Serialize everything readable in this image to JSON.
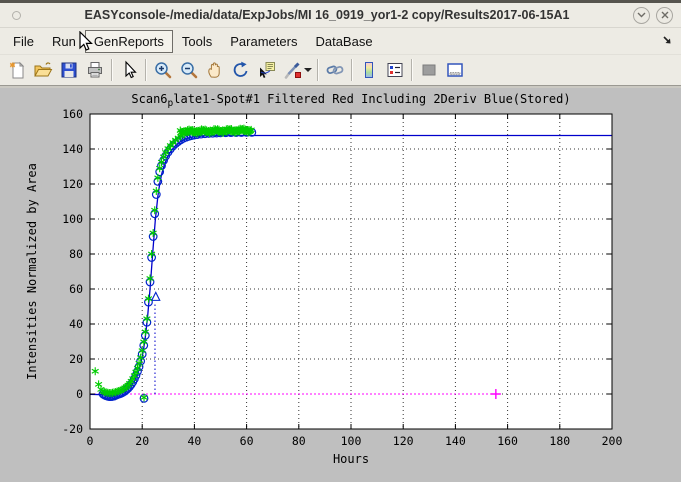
{
  "window": {
    "title": "EASYconsole-/media/data/ExpJobs/MI 16_0919_yor1-2 copy/Results2017-06-15A1"
  },
  "menu": {
    "items": [
      {
        "id": "file",
        "label": "File"
      },
      {
        "id": "run",
        "label": "Run"
      },
      {
        "id": "genreports",
        "label": "GenReports",
        "highlighted": true
      },
      {
        "id": "tools",
        "label": "Tools"
      },
      {
        "id": "parameters",
        "label": "Parameters"
      },
      {
        "id": "database",
        "label": "DataBase"
      }
    ]
  },
  "toolbar": {
    "icons": [
      "new-document",
      "open-file",
      "save",
      "print",
      "pointer",
      "zoom-in",
      "zoom-out",
      "pan-hand",
      "rotate-3d",
      "data-cursor",
      "brush",
      "link-plots",
      "insert-colorbar",
      "insert-legend",
      "hide-plot-tools",
      "show-plot-tools"
    ]
  },
  "chart_data": {
    "type": "line",
    "title_parts": {
      "pre": "Scan6",
      "sub": "p",
      "post": "late1-Spot#1 Filtered Red Including 2Deriv Blue(Stored)"
    },
    "xlabel": "Hours",
    "ylabel": "Intensities Normalized by Area",
    "xlim": [
      0,
      200
    ],
    "ylim": [
      -20,
      160
    ],
    "xticks": [
      0,
      20,
      40,
      60,
      80,
      100,
      120,
      140,
      160,
      180,
      200
    ],
    "yticks": [
      -20,
      0,
      20,
      40,
      60,
      80,
      100,
      120,
      140,
      160
    ],
    "grid": true,
    "legend": "none",
    "colors": {
      "fit_line": "#0000cc",
      "circle_markers": "#0022cc",
      "star_markers": "#00cc00",
      "baseline": "#ff00ff",
      "axis": "#000000",
      "plot_bg": "#ffffff",
      "figure_bg": "#bfbfbf"
    },
    "series": [
      {
        "name": "fit-line",
        "marker": "none",
        "points": [
          [
            0,
            -0.2
          ],
          [
            5,
            -0.4
          ],
          [
            7,
            -0.6
          ],
          [
            9,
            -0.4
          ],
          [
            11,
            0.2
          ],
          [
            13,
            1.4
          ],
          [
            15,
            3.5
          ],
          [
            16,
            5
          ],
          [
            17,
            7.2
          ],
          [
            18,
            10.5
          ],
          [
            19,
            15
          ],
          [
            20,
            21
          ],
          [
            21,
            30
          ],
          [
            22,
            43
          ],
          [
            23,
            60
          ],
          [
            24,
            80
          ],
          [
            25,
            99
          ],
          [
            26,
            113
          ],
          [
            26.8,
            121
          ],
          [
            27.6,
            126.5
          ],
          [
            28.5,
            131
          ],
          [
            29.5,
            134.8
          ],
          [
            30.5,
            137.6
          ],
          [
            31.5,
            139.8
          ],
          [
            32.5,
            141.5
          ],
          [
            33.5,
            142.9
          ],
          [
            34.5,
            144
          ],
          [
            35.5,
            144.9
          ],
          [
            36.5,
            145.6
          ],
          [
            37.5,
            146.2
          ],
          [
            38.5,
            146.6
          ],
          [
            40,
            147.1
          ],
          [
            42,
            147.4
          ],
          [
            44,
            147.6
          ],
          [
            47,
            147.7
          ],
          [
            200,
            147.7
          ]
        ]
      },
      {
        "name": "filtered-red-circles",
        "marker": "circle",
        "points": [
          [
            5,
            0
          ],
          [
            5.6,
            -0.6
          ],
          [
            6.2,
            -1
          ],
          [
            6.8,
            -1.3
          ],
          [
            7.4,
            -1.5
          ],
          [
            8,
            -1.5
          ],
          [
            8.6,
            -1.4
          ],
          [
            9.2,
            -1.2
          ],
          [
            9.8,
            -0.8
          ],
          [
            10.4,
            -0.4
          ],
          [
            11,
            -0.1
          ],
          [
            11.6,
            0.2
          ],
          [
            12.2,
            0.6
          ],
          [
            12.8,
            1.1
          ],
          [
            13.4,
            1.7
          ],
          [
            14,
            2.5
          ],
          [
            14.6,
            3.3
          ],
          [
            15.2,
            4.3
          ],
          [
            15.8,
            5.5
          ],
          [
            16.4,
            6.9
          ],
          [
            17,
            8.6
          ],
          [
            17.6,
            10.6
          ],
          [
            18.2,
            12.9
          ],
          [
            18.8,
            15.6
          ],
          [
            19.4,
            18.8
          ],
          [
            20,
            22.8
          ],
          [
            20.6,
            27.8
          ],
          [
            21.2,
            33.5
          ],
          [
            21.8,
            41
          ],
          [
            22.4,
            52.5
          ],
          [
            23,
            64
          ],
          [
            23.6,
            78
          ],
          [
            24.2,
            90
          ],
          [
            24.8,
            103
          ],
          [
            25.4,
            114
          ],
          [
            26,
            121.5
          ],
          [
            26.7,
            127
          ],
          [
            27.4,
            130.5
          ],
          [
            28.2,
            133.5
          ],
          [
            29,
            136
          ],
          [
            29.9,
            138.2
          ],
          [
            30.8,
            140
          ],
          [
            31.8,
            141.7
          ],
          [
            32.8,
            143.1
          ],
          [
            33.8,
            144.3
          ],
          [
            34.8,
            145.3
          ],
          [
            35.8,
            146.1
          ],
          [
            36.8,
            146.7
          ],
          [
            37.8,
            147.2
          ],
          [
            38.8,
            147.6
          ],
          [
            39.8,
            147.9
          ],
          [
            41,
            148.2
          ],
          [
            42.5,
            148.5
          ],
          [
            44,
            148.7
          ],
          [
            45.5,
            148.9
          ],
          [
            47,
            149
          ],
          [
            48.5,
            149.1
          ],
          [
            50,
            149.2
          ],
          [
            52,
            149.3
          ],
          [
            54,
            149.35
          ],
          [
            56,
            149.4
          ],
          [
            58,
            149.45
          ],
          [
            60,
            149.5
          ],
          [
            62,
            149.5
          ],
          [
            20.7,
            -2.5
          ]
        ]
      },
      {
        "name": "raw-green-stars",
        "marker": "star",
        "points": [
          [
            2,
            13
          ],
          [
            3.3,
            5.5
          ],
          [
            4.2,
            2.6
          ],
          [
            5,
            1.6
          ],
          [
            5.6,
            1.1
          ],
          [
            6.2,
            0.9
          ],
          [
            6.8,
            0.7
          ],
          [
            7.4,
            0.6
          ],
          [
            8,
            0.6
          ],
          [
            8.6,
            0.7
          ],
          [
            9.2,
            0.9
          ],
          [
            9.8,
            1.1
          ],
          [
            10.4,
            1.4
          ],
          [
            11,
            1.7
          ],
          [
            11.6,
            2
          ],
          [
            12.2,
            2.4
          ],
          [
            12.8,
            2.9
          ],
          [
            13.4,
            3.5
          ],
          [
            14,
            4.3
          ],
          [
            14.6,
            5.1
          ],
          [
            15.2,
            6.1
          ],
          [
            15.8,
            7.3
          ],
          [
            16.4,
            8.8
          ],
          [
            17,
            10.5
          ],
          [
            17.6,
            12.5
          ],
          [
            18.2,
            14.8
          ],
          [
            18.8,
            17.5
          ],
          [
            19.4,
            20.8
          ],
          [
            20,
            24.8
          ],
          [
            20.6,
            29.8
          ],
          [
            21.2,
            35.5
          ],
          [
            21.8,
            43
          ],
          [
            22.4,
            54.5
          ],
          [
            23,
            66
          ],
          [
            23.6,
            80
          ],
          [
            24.2,
            92
          ],
          [
            24.8,
            105
          ],
          [
            25.4,
            116
          ],
          [
            26,
            123.5
          ],
          [
            26.7,
            129
          ],
          [
            27.4,
            132.5
          ],
          [
            28.2,
            135.5
          ],
          [
            29,
            138
          ],
          [
            29.9,
            140.2
          ],
          [
            30.8,
            142
          ],
          [
            31.8,
            143.7
          ],
          [
            32.8,
            145.1
          ],
          [
            33.8,
            146.3
          ],
          [
            34.8,
            147.3
          ],
          [
            20.7,
            -2
          ]
        ]
      }
    ],
    "plateau_band": {
      "x_start": 34.6,
      "x_end": 62,
      "step": 0.28,
      "y_base": 150.3,
      "y_slope": 0.03,
      "jitter": 1.2
    },
    "annotations": {
      "baseline": {
        "y": 0,
        "x_start": 0,
        "x_end": 155.5,
        "plus_marker": [
          155.5,
          0
        ]
      },
      "vline": {
        "x": 24.9,
        "y_start": 0,
        "y_end": 52.5
      },
      "triangle_marker": [
        25.2,
        55.5
      ]
    }
  }
}
